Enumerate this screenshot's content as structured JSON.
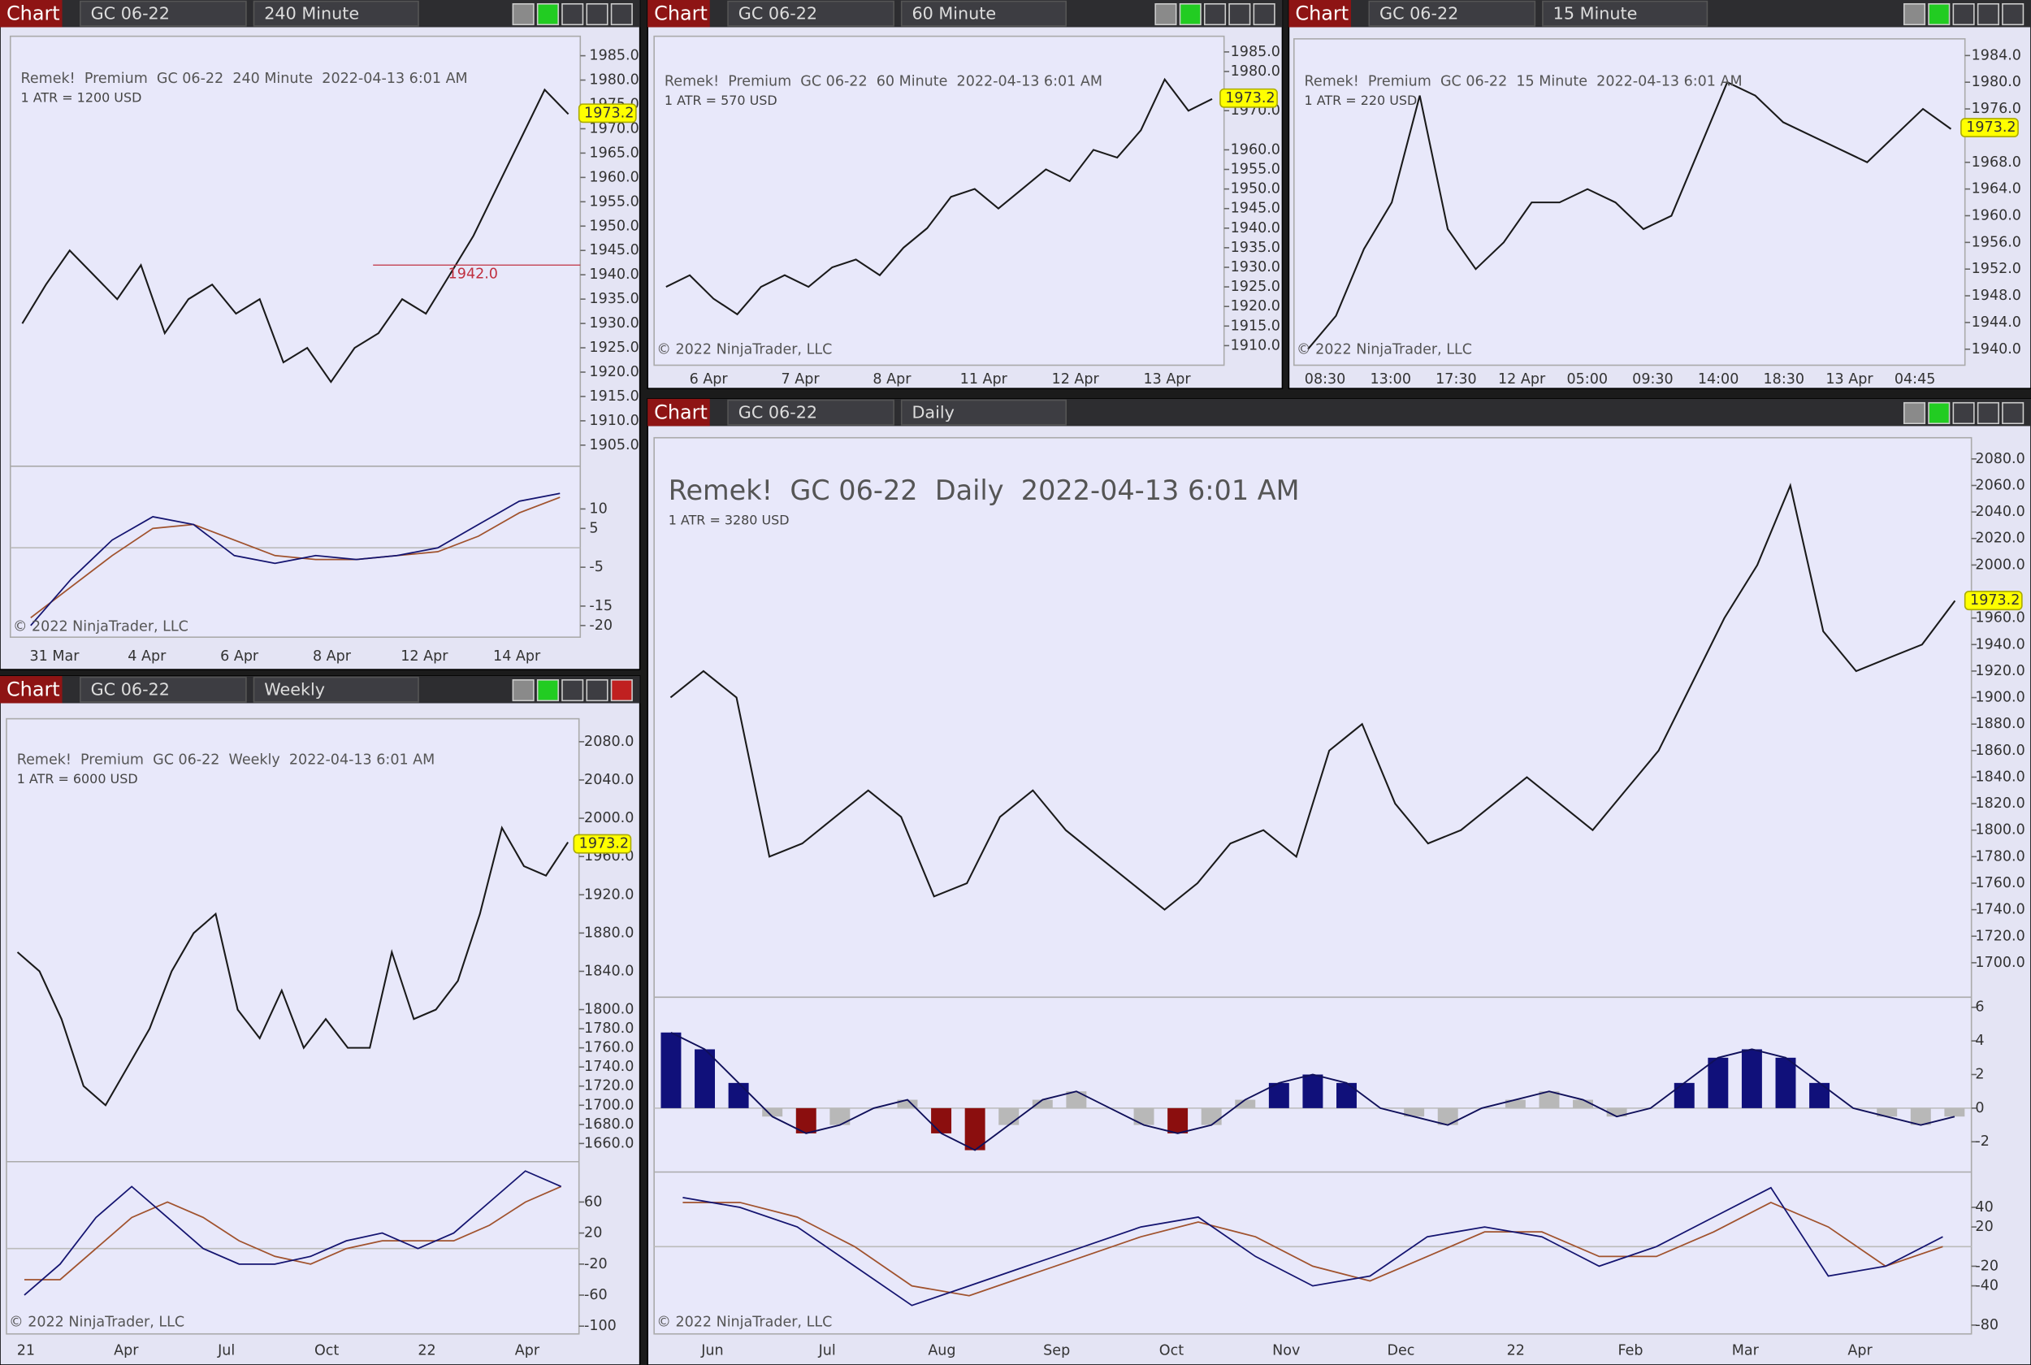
{
  "windows": [
    {
      "tab": "Chart",
      "instrument": "GC 06-22",
      "interval": "240 Minute",
      "title": "Remek!  Premium  GC 06-22  240 Minute  2022-04-13 6:01 AM",
      "atr": "1 ATR = 1200 USD",
      "copyright": "© 2022 NinjaTrader, LLC",
      "last_price": {
        "value": 1973.2,
        "label": "1973.2"
      },
      "level": {
        "value": 1942,
        "label": "1942.0"
      },
      "ylim": [
        1902,
        1989
      ],
      "yticks": [
        {
          "value": 1985,
          "label": "1985.0"
        },
        {
          "value": 1980,
          "label": "1980.0"
        },
        {
          "value": 1975,
          "label": "1975.0"
        },
        {
          "value": 1970,
          "label": "1970.0"
        },
        {
          "value": 1965,
          "label": "1965.0"
        },
        {
          "value": 1960,
          "label": "1960.0"
        },
        {
          "value": 1955,
          "label": "1955.0"
        },
        {
          "value": 1950,
          "label": "1950.0"
        },
        {
          "value": 1945,
          "label": "1945.0"
        },
        {
          "value": 1940,
          "label": "1940.0"
        },
        {
          "value": 1935,
          "label": "1935.0"
        },
        {
          "value": 1930,
          "label": "1930.0"
        },
        {
          "value": 1925,
          "label": "1925.0"
        },
        {
          "value": 1920,
          "label": "1920.0"
        },
        {
          "value": 1915,
          "label": "1915.0"
        },
        {
          "value": 1910,
          "label": "1910.0"
        },
        {
          "value": 1905,
          "label": "1905.0"
        }
      ],
      "x_labels": [
        "31 Mar",
        "4 Apr",
        "6 Apr",
        "8 Apr",
        "12 Apr",
        "14 Apr"
      ],
      "close": [
        1930,
        1938,
        1945,
        1940,
        1935,
        1942,
        1928,
        1935,
        1938,
        1932,
        1935,
        1922,
        1925,
        1918,
        1925,
        1928,
        1935,
        1932,
        1940,
        1948,
        1958,
        1968,
        1978,
        1973
      ],
      "osc_ylim": [
        -23,
        21
      ],
      "osc_ticks": [
        10,
        5,
        -5,
        -15,
        -20
      ],
      "osc_fast": [
        -20,
        -8,
        2,
        8,
        6,
        -2,
        -4,
        -2,
        -3,
        -2,
        0,
        6,
        12,
        14
      ],
      "osc_slow": [
        -18,
        -10,
        -2,
        5,
        6,
        2,
        -2,
        -3,
        -3,
        -2,
        -1,
        3,
        9,
        13
      ]
    },
    {
      "tab": "Chart",
      "instrument": "GC 06-22",
      "interval": "60 Minute",
      "title": "Remek!  Premium  GC 06-22  60 Minute  2022-04-13 6:01 AM",
      "atr": "1 ATR = 570 USD",
      "copyright": "© 2022 NinjaTrader, LLC",
      "last_price": {
        "value": 1973.2,
        "label": "1973.2"
      },
      "ylim": [
        1905,
        1989
      ],
      "yticks": [
        {
          "value": 1985,
          "label": "1985.0"
        },
        {
          "value": 1980,
          "label": "1980.0"
        },
        {
          "value": 1970,
          "label": "1970.0"
        },
        {
          "value": 1960,
          "label": "1960.0"
        },
        {
          "value": 1955,
          "label": "1955.0"
        },
        {
          "value": 1950,
          "label": "1950.0"
        },
        {
          "value": 1945,
          "label": "1945.0"
        },
        {
          "value": 1940,
          "label": "1940.0"
        },
        {
          "value": 1935,
          "label": "1935.0"
        },
        {
          "value": 1930,
          "label": "1930.0"
        },
        {
          "value": 1925,
          "label": "1925.0"
        },
        {
          "value": 1920,
          "label": "1920.0"
        },
        {
          "value": 1915,
          "label": "1915.0"
        },
        {
          "value": 1910,
          "label": "1910.0"
        }
      ],
      "x_labels": [
        "6 Apr",
        "7 Apr",
        "8 Apr",
        "11 Apr",
        "12 Apr",
        "13 Apr"
      ],
      "close": [
        1925,
        1928,
        1922,
        1918,
        1925,
        1928,
        1925,
        1930,
        1932,
        1928,
        1935,
        1940,
        1948,
        1950,
        1945,
        1950,
        1955,
        1952,
        1960,
        1958,
        1965,
        1978,
        1970,
        1973
      ]
    },
    {
      "tab": "Chart",
      "instrument": "GC 06-22",
      "interval": "15 Minute",
      "title": "Remek!  Premium  GC 06-22  15 Minute  2022-04-13 6:01 AM",
      "atr": "1 ATR = 220 USD",
      "copyright": "© 2022 NinjaTrader, LLC",
      "last_price": {
        "value": 1973.2,
        "label": "1973.2"
      },
      "ylim": [
        1937.6,
        1986.5
      ],
      "yticks": [
        {
          "value": 1984,
          "label": "1984.0"
        },
        {
          "value": 1980,
          "label": "1980.0"
        },
        {
          "value": 1976,
          "label": "1976.0"
        },
        {
          "value": 1968,
          "label": "1968.0"
        },
        {
          "value": 1964,
          "label": "1964.0"
        },
        {
          "value": 1960,
          "label": "1960.0"
        },
        {
          "value": 1956,
          "label": "1956.0"
        },
        {
          "value": 1952,
          "label": "1952.0"
        },
        {
          "value": 1948,
          "label": "1948.0"
        },
        {
          "value": 1944,
          "label": "1944.0"
        },
        {
          "value": 1940,
          "label": "1940.0"
        }
      ],
      "x_labels": [
        "08:30",
        "13:00",
        "17:30",
        "12 Apr",
        "05:00",
        "09:30",
        "14:00",
        "18:30",
        "13 Apr",
        "04:45"
      ],
      "close": [
        1940,
        1945,
        1955,
        1962,
        1978,
        1958,
        1952,
        1956,
        1962,
        1962,
        1964,
        1962,
        1958,
        1960,
        1970,
        1980,
        1978,
        1974,
        1972,
        1970,
        1968,
        1972,
        1976,
        1973
      ]
    },
    {
      "tab": "Chart",
      "instrument": "GC 06-22",
      "interval": "Weekly",
      "title": "Remek!  Premium  GC 06-22  Weekly  2022-04-13 6:01 AM",
      "atr": "1 ATR = 6000 USD",
      "copyright": "© 2022 NinjaTrader, LLC",
      "last_price": {
        "value": 1973.2,
        "label": "1973.2"
      },
      "ylim": [
        1641,
        2104
      ],
      "yticks": [
        {
          "value": 2080,
          "label": "2080.0"
        },
        {
          "value": 2040,
          "label": "2040.0"
        },
        {
          "value": 2000,
          "label": "2000.0"
        },
        {
          "value": 1960,
          "label": "1960.0"
        },
        {
          "value": 1920,
          "label": "1920.0"
        },
        {
          "value": 1880,
          "label": "1880.0"
        },
        {
          "value": 1840,
          "label": "1840.0"
        },
        {
          "value": 1800,
          "label": "1800.0"
        },
        {
          "value": 1780,
          "label": "1780.0"
        },
        {
          "value": 1760,
          "label": "1760.0"
        },
        {
          "value": 1740,
          "label": "1740.0"
        },
        {
          "value": 1720,
          "label": "1720.0"
        },
        {
          "value": 1700,
          "label": "1700.0"
        },
        {
          "value": 1680,
          "label": "1680.0"
        },
        {
          "value": 1660,
          "label": "1660.0"
        }
      ],
      "x_labels": [
        "21",
        "Apr",
        "Jul",
        "Oct",
        "22",
        "Apr"
      ],
      "close": [
        1860,
        1840,
        1790,
        1720,
        1700,
        1740,
        1780,
        1840,
        1880,
        1900,
        1800,
        1770,
        1820,
        1760,
        1790,
        1760,
        1760,
        1860,
        1790,
        1800,
        1830,
        1900,
        1990,
        1950,
        1940,
        1975
      ],
      "osc_ylim": [
        -110,
        112
      ],
      "osc_ticks": [
        60,
        20,
        -20,
        -60,
        -100
      ],
      "osc_fast": [
        -60,
        -20,
        40,
        80,
        40,
        0,
        -20,
        -20,
        -10,
        10,
        20,
        0,
        20,
        60,
        100,
        80
      ],
      "osc_slow": [
        -40,
        -40,
        0,
        40,
        60,
        40,
        10,
        -10,
        -20,
        0,
        10,
        10,
        10,
        30,
        60,
        80
      ]
    },
    {
      "tab": "Chart",
      "instrument": "GC 06-22",
      "interval": "Daily",
      "title": "Remek!  GC 06-22  Daily  2022-04-13 6:01 AM",
      "atr": "1 ATR = 3280 USD",
      "copyright": "© 2022 NinjaTrader, LLC",
      "last_price": {
        "value": 1973.2,
        "label": "1973.2"
      },
      "ylim": [
        1674,
        2096
      ],
      "yticks": [
        {
          "value": 2080,
          "label": "2080.0"
        },
        {
          "value": 2060,
          "label": "2060.0"
        },
        {
          "value": 2040,
          "label": "2040.0"
        },
        {
          "value": 2020,
          "label": "2020.0"
        },
        {
          "value": 2000,
          "label": "2000.0"
        },
        {
          "value": 1960,
          "label": "1960.0"
        },
        {
          "value": 1940,
          "label": "1940.0"
        },
        {
          "value": 1920,
          "label": "1920.0"
        },
        {
          "value": 1900,
          "label": "1900.0"
        },
        {
          "value": 1880,
          "label": "1880.0"
        },
        {
          "value": 1860,
          "label": "1860.0"
        },
        {
          "value": 1840,
          "label": "1840.0"
        },
        {
          "value": 1820,
          "label": "1820.0"
        },
        {
          "value": 1800,
          "label": "1800.0"
        },
        {
          "value": 1780,
          "label": "1780.0"
        },
        {
          "value": 1760,
          "label": "1760.0"
        },
        {
          "value": 1740,
          "label": "1740.0"
        },
        {
          "value": 1720,
          "label": "1720.0"
        },
        {
          "value": 1700,
          "label": "1700.0"
        }
      ],
      "x_labels": [
        "Jun",
        "Jul",
        "Aug",
        "Sep",
        "Oct",
        "Nov",
        "Dec",
        "22",
        "Feb",
        "Mar",
        "Apr"
      ],
      "close": [
        1900,
        1920,
        1900,
        1780,
        1790,
        1810,
        1830,
        1810,
        1750,
        1760,
        1810,
        1830,
        1800,
        1780,
        1760,
        1740,
        1760,
        1790,
        1800,
        1780,
        1860,
        1880,
        1820,
        1790,
        1800,
        1820,
        1840,
        1820,
        1800,
        1830,
        1860,
        1910,
        1960,
        2000,
        2060,
        1950,
        1920,
        1930,
        1940,
        1973
      ],
      "macd_ylim": [
        -3.8,
        6.6
      ],
      "macd_ticks": [
        6,
        4,
        2,
        0,
        -2
      ],
      "macd": [
        4.5,
        3.5,
        1.5,
        -0.5,
        -1.5,
        -1,
        0,
        0.5,
        -1.5,
        -2.5,
        -1,
        0.5,
        1,
        0,
        -1,
        -1.5,
        -1,
        0.5,
        1.5,
        2,
        1.5,
        0,
        -0.5,
        -1,
        0,
        0.5,
        1,
        0.5,
        -0.5,
        0,
        1.5,
        3,
        3.5,
        3,
        1.5,
        0,
        -0.5,
        -1,
        -0.5
      ],
      "osc_ylim": [
        -89,
        76
      ],
      "osc_ticks": [
        40,
        20,
        -20,
        -40,
        -80
      ],
      "osc_fast": [
        50,
        40,
        20,
        -20,
        -60,
        -40,
        -20,
        0,
        20,
        30,
        -10,
        -40,
        -30,
        10,
        20,
        10,
        -20,
        0,
        30,
        60,
        -30,
        -20,
        10
      ],
      "osc_slow": [
        45,
        45,
        30,
        0,
        -40,
        -50,
        -30,
        -10,
        10,
        25,
        10,
        -20,
        -35,
        -10,
        15,
        15,
        -10,
        -10,
        15,
        45,
        20,
        -20,
        0
      ]
    }
  ]
}
